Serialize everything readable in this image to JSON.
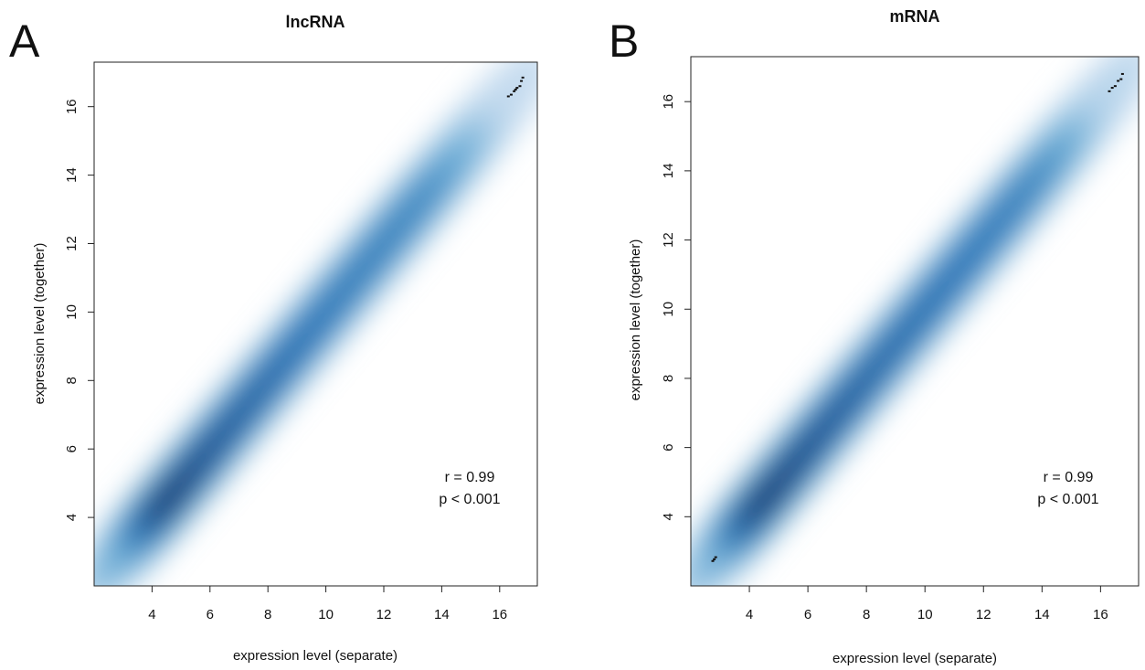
{
  "chart_data": [
    {
      "type": "scatter",
      "subtype": "smooth-density-scatter",
      "panel": "A",
      "title": "lncRNA",
      "xlabel": "expression level (separate)",
      "ylabel": "expression level (together)",
      "xlim": [
        2.0,
        17.3
      ],
      "ylim": [
        2.0,
        17.3
      ],
      "xticks": [
        4,
        6,
        8,
        10,
        12,
        14,
        16
      ],
      "yticks": [
        4,
        6,
        8,
        10,
        12,
        14,
        16
      ],
      "grid": false,
      "color_scale": [
        "#ffffff",
        "#c6dbef",
        "#6baed6",
        "#2171b5",
        "#08306b"
      ],
      "density_ridge": {
        "x": [
          2.9,
          3.5,
          4.0,
          4.5,
          5.0,
          5.5,
          6.0,
          7.0,
          8.0,
          9.0,
          10.0,
          11.0,
          12.0,
          13.0,
          14.0,
          15.0,
          16.0,
          16.5
        ],
        "y": [
          2.9,
          3.5,
          4.0,
          4.5,
          5.0,
          5.5,
          6.0,
          7.0,
          8.0,
          9.0,
          10.0,
          11.0,
          12.0,
          13.0,
          14.0,
          15.0,
          16.0,
          16.5
        ],
        "density": [
          0.35,
          0.55,
          0.75,
          0.92,
          1.0,
          0.97,
          0.92,
          0.86,
          0.82,
          0.78,
          0.75,
          0.72,
          0.7,
          0.68,
          0.64,
          0.5,
          0.28,
          0.15
        ]
      },
      "outlier_points": {
        "x": [
          16.3,
          16.4,
          16.5,
          16.55,
          16.6,
          16.7,
          16.75,
          16.8
        ],
        "y": [
          16.3,
          16.35,
          16.45,
          16.5,
          16.55,
          16.6,
          16.75,
          16.85
        ]
      },
      "annotations": [
        "r = 0.99",
        "p < 0.001"
      ]
    },
    {
      "type": "scatter",
      "subtype": "smooth-density-scatter",
      "panel": "B",
      "title": "mRNA",
      "xlabel": "expression level (separate)",
      "ylabel": "expression level (together)",
      "xlim": [
        2.0,
        17.3
      ],
      "ylim": [
        2.0,
        17.3
      ],
      "xticks": [
        4,
        6,
        8,
        10,
        12,
        14,
        16
      ],
      "yticks": [
        4,
        6,
        8,
        10,
        12,
        14,
        16
      ],
      "grid": false,
      "color_scale": [
        "#ffffff",
        "#c6dbef",
        "#6baed6",
        "#2171b5",
        "#08306b"
      ],
      "density_ridge": {
        "x": [
          2.9,
          3.5,
          4.0,
          4.5,
          5.0,
          5.5,
          6.0,
          7.0,
          8.0,
          9.0,
          10.0,
          11.0,
          12.0,
          13.0,
          14.0,
          15.0,
          16.0,
          16.5
        ],
        "y": [
          2.9,
          3.5,
          4.0,
          4.5,
          5.0,
          5.5,
          6.0,
          7.0,
          8.0,
          9.0,
          10.0,
          11.0,
          12.0,
          13.0,
          14.0,
          15.0,
          16.0,
          16.5
        ],
        "density": [
          0.32,
          0.55,
          0.78,
          0.93,
          1.0,
          0.97,
          0.93,
          0.88,
          0.84,
          0.8,
          0.78,
          0.76,
          0.74,
          0.72,
          0.68,
          0.56,
          0.32,
          0.18
        ]
      },
      "outlier_points": {
        "x": [
          2.75,
          2.8,
          2.85,
          16.3,
          16.4,
          16.5,
          16.6,
          16.7,
          16.75
        ],
        "y": [
          2.72,
          2.77,
          2.83,
          16.3,
          16.4,
          16.45,
          16.6,
          16.65,
          16.8
        ]
      },
      "annotations": [
        "r = 0.99",
        "p < 0.001"
      ]
    }
  ]
}
